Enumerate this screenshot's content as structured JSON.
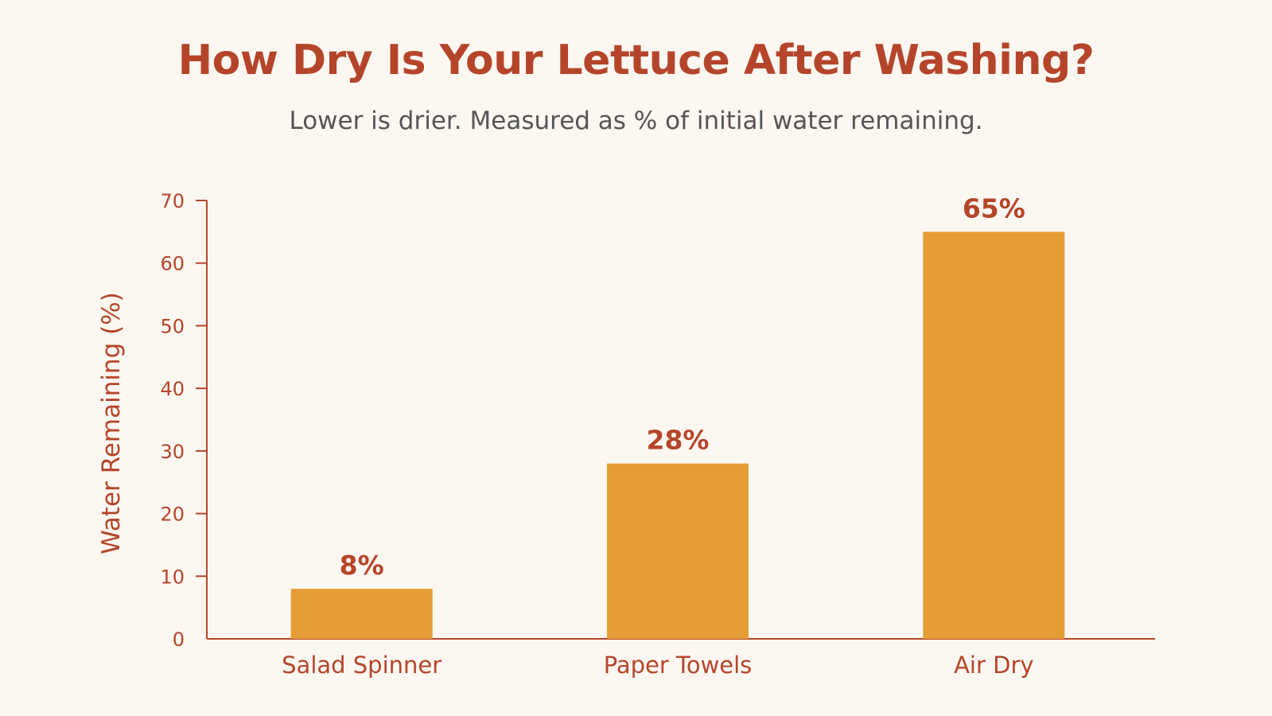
{
  "chart_data": {
    "type": "bar",
    "title": "How Dry Is Your Lettuce After Washing?",
    "subtitle": "Lower is drier. Measured as % of initial water remaining.",
    "xlabel": "",
    "ylabel": "Water Remaining (%)",
    "categories": [
      "Salad Spinner",
      "Paper Towels",
      "Air Dry"
    ],
    "values": [
      8,
      28,
      65
    ],
    "value_labels": [
      "8%",
      "28%",
      "65%"
    ],
    "ylim": [
      0,
      70
    ],
    "yticks": [
      0,
      10,
      20,
      30,
      40,
      50,
      60,
      70
    ],
    "grid": false,
    "legend": "none",
    "colors": {
      "bar": "#e59e35",
      "axis": "#b5452a",
      "text": "#b5452a",
      "subtitle": "#555555",
      "background": "#fcf7f1"
    }
  }
}
